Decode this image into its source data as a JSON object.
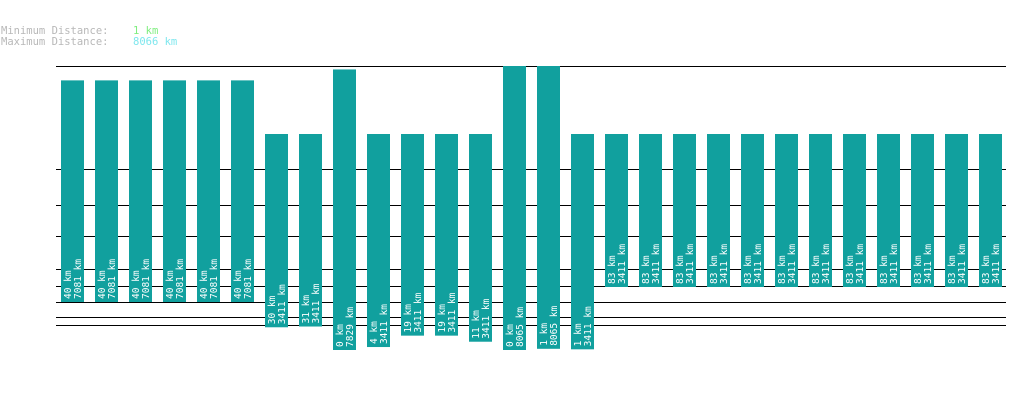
{
  "summary": {
    "min_label": "Minimum Distance:",
    "min_value": "1 km",
    "max_label": "Maximum Distance:",
    "max_value": "8066 km"
  },
  "colors": {
    "bar": "#11a09e",
    "min_value": "#7fee7f",
    "max_value": "#7fe7ee",
    "label_gray": "#b8b8b8",
    "gridline": "#000000"
  },
  "chart_data": {
    "type": "bar",
    "bars": [
      {
        "top": "40 km",
        "bottom": "7081 km"
      },
      {
        "top": "40 km",
        "bottom": "7081 km"
      },
      {
        "top": "40 km",
        "bottom": "7081 km"
      },
      {
        "top": "40 km",
        "bottom": "7081 km"
      },
      {
        "top": "40 km",
        "bottom": "7081 km"
      },
      {
        "top": "40 km",
        "bottom": "7081 km"
      },
      {
        "top": "30 km",
        "bottom": "3411 km"
      },
      {
        "top": "31 km",
        "bottom": "3411 km"
      },
      {
        "top": "0 km",
        "bottom": "7829 km"
      },
      {
        "top": "4 km",
        "bottom": "3411 km"
      },
      {
        "top": "19 km",
        "bottom": "3411 km"
      },
      {
        "top": "19 km",
        "bottom": "3411 km"
      },
      {
        "top": "11 km",
        "bottom": "3411 km"
      },
      {
        "top": "0 km",
        "bottom": "8065 km"
      },
      {
        "top": "1 km",
        "bottom": "8065 km"
      },
      {
        "top": "1 km",
        "bottom": "3411 km"
      },
      {
        "top": "83 km",
        "bottom": "3411 km"
      },
      {
        "top": "83 km",
        "bottom": "3411 km"
      },
      {
        "top": "83 km",
        "bottom": "3411 km"
      },
      {
        "top": "83 km",
        "bottom": "3411 km"
      },
      {
        "top": "83 km",
        "bottom": "3411 km"
      },
      {
        "top": "83 km",
        "bottom": "3411 km"
      },
      {
        "top": "83 km",
        "bottom": "3411 km"
      },
      {
        "top": "83 km",
        "bottom": "3411 km"
      },
      {
        "top": "83 km",
        "bottom": "3411 km"
      },
      {
        "top": "83 km",
        "bottom": "3411 km"
      },
      {
        "top": "83 km",
        "bottom": "3411 km"
      },
      {
        "top": "83 km",
        "bottom": "3411 km"
      }
    ]
  }
}
